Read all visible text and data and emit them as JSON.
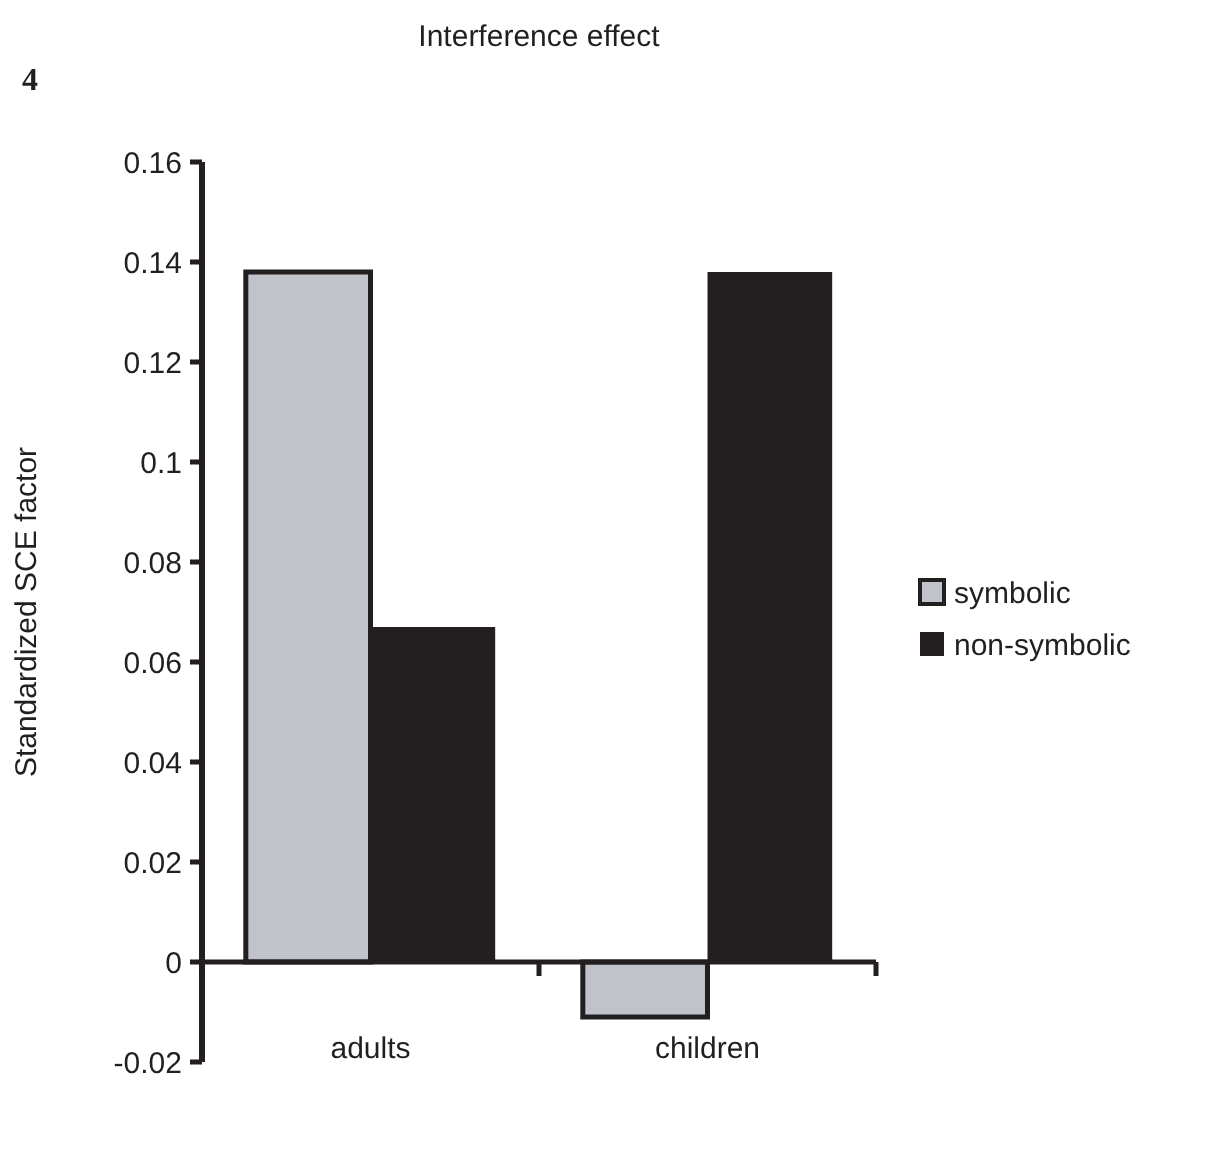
{
  "chart_data": {
    "type": "bar",
    "title": "Interference effect",
    "ylabel": "Standardized SCE factor",
    "annotations": [
      "4"
    ],
    "categories": [
      "adults",
      "children"
    ],
    "series": [
      {
        "name": "symbolic",
        "color": "#c0c3ca",
        "values": [
          0.138,
          -0.011
        ]
      },
      {
        "name": "non-symbolic",
        "color": "#231f20",
        "values": [
          0.067,
          0.138
        ]
      }
    ],
    "ylim": [
      -0.02,
      0.16
    ],
    "yticks": [
      {
        "value": -0.02,
        "label": "-0.02"
      },
      0,
      0.02,
      0.04,
      0.06,
      0.08,
      {
        "value": 0.1,
        "label": "0.1"
      },
      0.12,
      0.14,
      0.16
    ],
    "grid": false,
    "legend": "right"
  }
}
